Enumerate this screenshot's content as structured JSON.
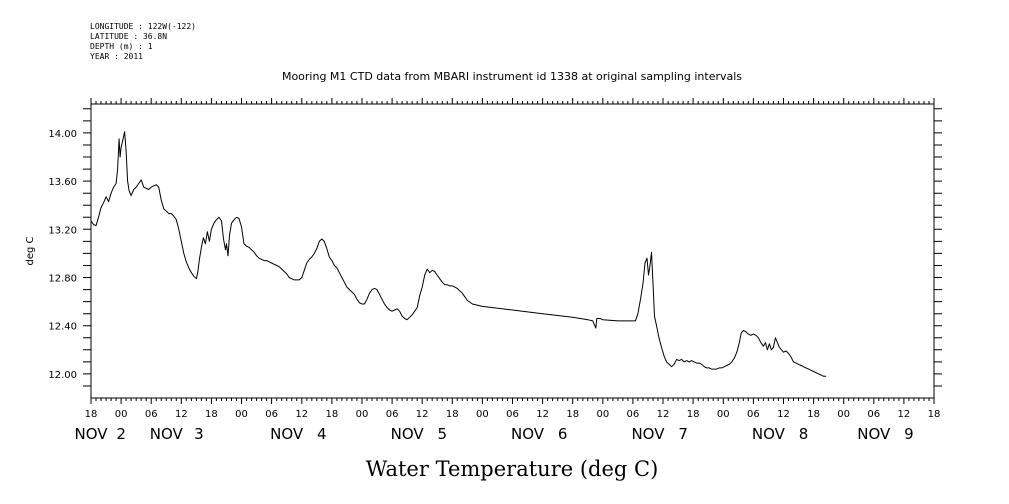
{
  "meta": {
    "longitude": "LONGITUDE : 122W(-122)",
    "latitude": "LATITUDE : 36.8N",
    "depth": "DEPTH (m) : 1",
    "year": "YEAR : 2011"
  },
  "chart_data": {
    "type": "line",
    "title": "Mooring M1 CTD data from MBARI instrument id 1338 at original sampling intervals",
    "xlabel": "Water Temperature (deg C)",
    "ylabel": "deg C",
    "ylim": [
      11.8,
      14.24
    ],
    "xlim_hours": [
      -6,
      162
    ],
    "y_ticks": [
      12.0,
      12.4,
      12.8,
      13.2,
      13.6,
      14.0
    ],
    "y_tick_labels": [
      "12.00",
      "12.40",
      "12.80",
      "13.20",
      "13.60",
      "14.00"
    ],
    "x_hour_ticks": [
      -6,
      0,
      6,
      12,
      18,
      24,
      30,
      36,
      42,
      48,
      54,
      60,
      66,
      72,
      78,
      84,
      90,
      96,
      102,
      108,
      114,
      120,
      126,
      132,
      138,
      144,
      150,
      156,
      162
    ],
    "x_hour_labels": [
      "18",
      "00",
      "06",
      "12",
      "18",
      "00",
      "06",
      "12",
      "18",
      "00",
      "06",
      "12",
      "18",
      "00",
      "06",
      "12",
      "18",
      "00",
      "06",
      "12",
      "18",
      "00",
      "06",
      "12",
      "18",
      "00",
      "06",
      "12",
      "18"
    ],
    "x_date_labels": [
      {
        "hour": -6,
        "text": "NOV"
      },
      {
        "hour": 0,
        "text": "2"
      },
      {
        "hour": 9,
        "text": "NOV"
      },
      {
        "hour": 15.5,
        "text": "3"
      },
      {
        "hour": 33,
        "text": "NOV"
      },
      {
        "hour": 40,
        "text": "4"
      },
      {
        "hour": 57,
        "text": "NOV"
      },
      {
        "hour": 64,
        "text": "5"
      },
      {
        "hour": 81,
        "text": "NOV"
      },
      {
        "hour": 88,
        "text": "6"
      },
      {
        "hour": 105,
        "text": "NOV"
      },
      {
        "hour": 112,
        "text": "7"
      },
      {
        "hour": 129,
        "text": "NOV"
      },
      {
        "hour": 136,
        "text": "8"
      },
      {
        "hour": 150,
        "text": "NOV"
      },
      {
        "hour": 157,
        "text": "9"
      }
    ],
    "series": [
      {
        "color": "#000000",
        "points": [
          [
            -6.0,
            13.27
          ],
          [
            -5.5,
            13.24
          ],
          [
            -5.0,
            13.23
          ],
          [
            -4.5,
            13.3
          ],
          [
            -4.0,
            13.38
          ],
          [
            -3.5,
            13.42
          ],
          [
            -3.0,
            13.47
          ],
          [
            -2.5,
            13.43
          ],
          [
            -2.0,
            13.5
          ],
          [
            -1.5,
            13.55
          ],
          [
            -1.0,
            13.58
          ],
          [
            -0.7,
            13.7
          ],
          [
            -0.4,
            13.95
          ],
          [
            -0.2,
            13.8
          ],
          [
            0.0,
            13.88
          ],
          [
            0.4,
            13.95
          ],
          [
            0.7,
            14.01
          ],
          [
            1.0,
            13.85
          ],
          [
            1.3,
            13.6
          ],
          [
            1.6,
            13.52
          ],
          [
            2.0,
            13.48
          ],
          [
            2.5,
            13.53
          ],
          [
            3.0,
            13.55
          ],
          [
            3.5,
            13.58
          ],
          [
            4.0,
            13.61
          ],
          [
            4.5,
            13.55
          ],
          [
            5.0,
            13.54
          ],
          [
            5.5,
            13.53
          ],
          [
            6.0,
            13.55
          ],
          [
            6.5,
            13.56
          ],
          [
            7.0,
            13.57
          ],
          [
            7.5,
            13.55
          ],
          [
            8.0,
            13.44
          ],
          [
            8.5,
            13.37
          ],
          [
            9.0,
            13.35
          ],
          [
            9.5,
            13.33
          ],
          [
            10.0,
            13.33
          ],
          [
            10.5,
            13.31
          ],
          [
            11.0,
            13.28
          ],
          [
            11.5,
            13.2
          ],
          [
            12.0,
            13.1
          ],
          [
            12.5,
            13.0
          ],
          [
            13.0,
            12.93
          ],
          [
            13.5,
            12.88
          ],
          [
            14.0,
            12.84
          ],
          [
            14.5,
            12.81
          ],
          [
            15.0,
            12.79
          ],
          [
            15.3,
            12.85
          ],
          [
            15.6,
            12.95
          ],
          [
            16.0,
            13.05
          ],
          [
            16.4,
            13.13
          ],
          [
            16.8,
            13.08
          ],
          [
            17.2,
            13.18
          ],
          [
            17.6,
            13.1
          ],
          [
            18.0,
            13.2
          ],
          [
            18.5,
            13.25
          ],
          [
            19.0,
            13.28
          ],
          [
            19.5,
            13.3
          ],
          [
            20.0,
            13.27
          ],
          [
            20.4,
            13.12
          ],
          [
            20.8,
            13.03
          ],
          [
            21.0,
            13.08
          ],
          [
            21.3,
            12.98
          ],
          [
            21.6,
            13.15
          ],
          [
            22.0,
            13.25
          ],
          [
            22.5,
            13.28
          ],
          [
            23.0,
            13.3
          ],
          [
            23.5,
            13.29
          ],
          [
            24.0,
            13.22
          ],
          [
            24.5,
            13.08
          ],
          [
            25.0,
            13.06
          ],
          [
            25.5,
            13.05
          ],
          [
            26.0,
            13.03
          ],
          [
            26.5,
            13.01
          ],
          [
            27.0,
            12.98
          ],
          [
            27.5,
            12.96
          ],
          [
            28.0,
            12.95
          ],
          [
            28.5,
            12.94
          ],
          [
            29.0,
            12.94
          ],
          [
            29.5,
            12.93
          ],
          [
            30.0,
            12.92
          ],
          [
            30.5,
            12.91
          ],
          [
            31.0,
            12.9
          ],
          [
            31.5,
            12.89
          ],
          [
            32.0,
            12.87
          ],
          [
            32.5,
            12.85
          ],
          [
            33.0,
            12.83
          ],
          [
            33.5,
            12.8
          ],
          [
            34.0,
            12.79
          ],
          [
            34.5,
            12.78
          ],
          [
            35.0,
            12.78
          ],
          [
            35.5,
            12.78
          ],
          [
            36.0,
            12.8
          ],
          [
            36.5,
            12.86
          ],
          [
            37.0,
            12.92
          ],
          [
            37.5,
            12.95
          ],
          [
            38.0,
            12.97
          ],
          [
            38.5,
            13.0
          ],
          [
            39.0,
            13.04
          ],
          [
            39.5,
            13.1
          ],
          [
            40.0,
            13.12
          ],
          [
            40.5,
            13.1
          ],
          [
            41.0,
            13.04
          ],
          [
            41.5,
            12.97
          ],
          [
            42.0,
            12.94
          ],
          [
            42.5,
            12.9
          ],
          [
            43.0,
            12.88
          ],
          [
            43.5,
            12.84
          ],
          [
            44.0,
            12.8
          ],
          [
            44.5,
            12.76
          ],
          [
            45.0,
            12.72
          ],
          [
            45.5,
            12.7
          ],
          [
            46.0,
            12.68
          ],
          [
            46.5,
            12.66
          ],
          [
            47.0,
            12.62
          ],
          [
            47.5,
            12.59
          ],
          [
            48.0,
            12.58
          ],
          [
            48.5,
            12.58
          ],
          [
            49.0,
            12.62
          ],
          [
            49.5,
            12.67
          ],
          [
            50.0,
            12.7
          ],
          [
            50.5,
            12.71
          ],
          [
            51.0,
            12.7
          ],
          [
            51.5,
            12.66
          ],
          [
            52.0,
            12.62
          ],
          [
            52.5,
            12.58
          ],
          [
            53.0,
            12.55
          ],
          [
            53.5,
            12.53
          ],
          [
            54.0,
            12.52
          ],
          [
            54.5,
            12.53
          ],
          [
            55.0,
            12.54
          ],
          [
            55.5,
            12.52
          ],
          [
            56.0,
            12.48
          ],
          [
            56.5,
            12.46
          ],
          [
            57.0,
            12.45
          ],
          [
            57.5,
            12.47
          ],
          [
            58.0,
            12.49
          ],
          [
            58.5,
            12.52
          ],
          [
            59.0,
            12.55
          ],
          [
            59.5,
            12.65
          ],
          [
            60.0,
            12.72
          ],
          [
            60.5,
            12.82
          ],
          [
            61.0,
            12.87
          ],
          [
            61.5,
            12.84
          ],
          [
            62.0,
            12.86
          ],
          [
            62.5,
            12.85
          ],
          [
            63.0,
            12.82
          ],
          [
            63.5,
            12.79
          ],
          [
            64.0,
            12.76
          ],
          [
            64.5,
            12.74
          ],
          [
            65.0,
            12.74
          ],
          [
            65.5,
            12.73
          ],
          [
            66.0,
            12.73
          ],
          [
            66.5,
            12.72
          ],
          [
            67.0,
            12.71
          ],
          [
            67.5,
            12.69
          ],
          [
            68.0,
            12.67
          ],
          [
            68.5,
            12.64
          ],
          [
            69.0,
            12.61
          ],
          [
            70.0,
            12.58
          ],
          [
            72.0,
            12.56
          ],
          [
            78.0,
            12.53
          ],
          [
            84.0,
            12.5
          ],
          [
            90.0,
            12.47
          ],
          [
            93.0,
            12.45
          ],
          [
            94.0,
            12.44
          ],
          [
            94.4,
            12.4
          ],
          [
            94.6,
            12.38
          ],
          [
            94.8,
            12.46
          ],
          [
            95.5,
            12.46
          ],
          [
            96.0,
            12.45
          ],
          [
            99.0,
            12.44
          ],
          [
            102.0,
            12.44
          ],
          [
            102.5,
            12.44
          ],
          [
            103.0,
            12.5
          ],
          [
            103.5,
            12.62
          ],
          [
            104.0,
            12.75
          ],
          [
            104.4,
            12.92
          ],
          [
            104.8,
            12.96
          ],
          [
            105.1,
            12.82
          ],
          [
            105.4,
            12.9
          ],
          [
            105.7,
            13.01
          ],
          [
            106.0,
            12.75
          ],
          [
            106.3,
            12.48
          ],
          [
            106.7,
            12.4
          ],
          [
            107.2,
            12.3
          ],
          [
            107.7,
            12.22
          ],
          [
            108.2,
            12.15
          ],
          [
            108.7,
            12.1
          ],
          [
            109.2,
            12.08
          ],
          [
            109.7,
            12.06
          ],
          [
            110.2,
            12.08
          ],
          [
            110.7,
            12.12
          ],
          [
            111.2,
            12.11
          ],
          [
            111.7,
            12.12
          ],
          [
            112.2,
            12.1
          ],
          [
            112.7,
            12.11
          ],
          [
            113.2,
            12.1
          ],
          [
            113.7,
            12.11
          ],
          [
            114.2,
            12.1
          ],
          [
            114.7,
            12.09
          ],
          [
            115.2,
            12.09
          ],
          [
            115.7,
            12.08
          ],
          [
            116.2,
            12.06
          ],
          [
            116.7,
            12.05
          ],
          [
            117.2,
            12.05
          ],
          [
            117.7,
            12.04
          ],
          [
            118.2,
            12.04
          ],
          [
            118.7,
            12.04
          ],
          [
            119.2,
            12.05
          ],
          [
            119.7,
            12.05
          ],
          [
            120.2,
            12.06
          ],
          [
            120.7,
            12.07
          ],
          [
            121.2,
            12.08
          ],
          [
            121.7,
            12.1
          ],
          [
            122.2,
            12.13
          ],
          [
            122.7,
            12.18
          ],
          [
            123.2,
            12.26
          ],
          [
            123.6,
            12.34
          ],
          [
            124.0,
            12.36
          ],
          [
            124.5,
            12.35
          ],
          [
            125.0,
            12.33
          ],
          [
            125.5,
            12.32
          ],
          [
            126.0,
            12.33
          ],
          [
            126.5,
            12.32
          ],
          [
            127.0,
            12.3
          ],
          [
            127.5,
            12.26
          ],
          [
            128.0,
            12.23
          ],
          [
            128.4,
            12.26
          ],
          [
            128.8,
            12.2
          ],
          [
            129.2,
            12.25
          ],
          [
            129.6,
            12.2
          ],
          [
            130.0,
            12.22
          ],
          [
            130.4,
            12.3
          ],
          [
            130.8,
            12.26
          ],
          [
            131.2,
            12.22
          ],
          [
            131.6,
            12.2
          ],
          [
            132.0,
            12.18
          ],
          [
            132.5,
            12.19
          ],
          [
            133.0,
            12.17
          ],
          [
            133.5,
            12.14
          ],
          [
            134.0,
            12.1
          ],
          [
            134.5,
            12.09
          ],
          [
            135.0,
            12.08
          ],
          [
            135.5,
            12.07
          ],
          [
            136.0,
            12.06
          ],
          [
            136.5,
            12.05
          ],
          [
            137.0,
            12.04
          ],
          [
            137.5,
            12.03
          ],
          [
            138.0,
            12.02
          ],
          [
            138.5,
            12.01
          ],
          [
            139.0,
            12.0
          ],
          [
            139.5,
            11.99
          ],
          [
            140.0,
            11.98
          ],
          [
            140.5,
            11.98
          ]
        ]
      }
    ]
  }
}
